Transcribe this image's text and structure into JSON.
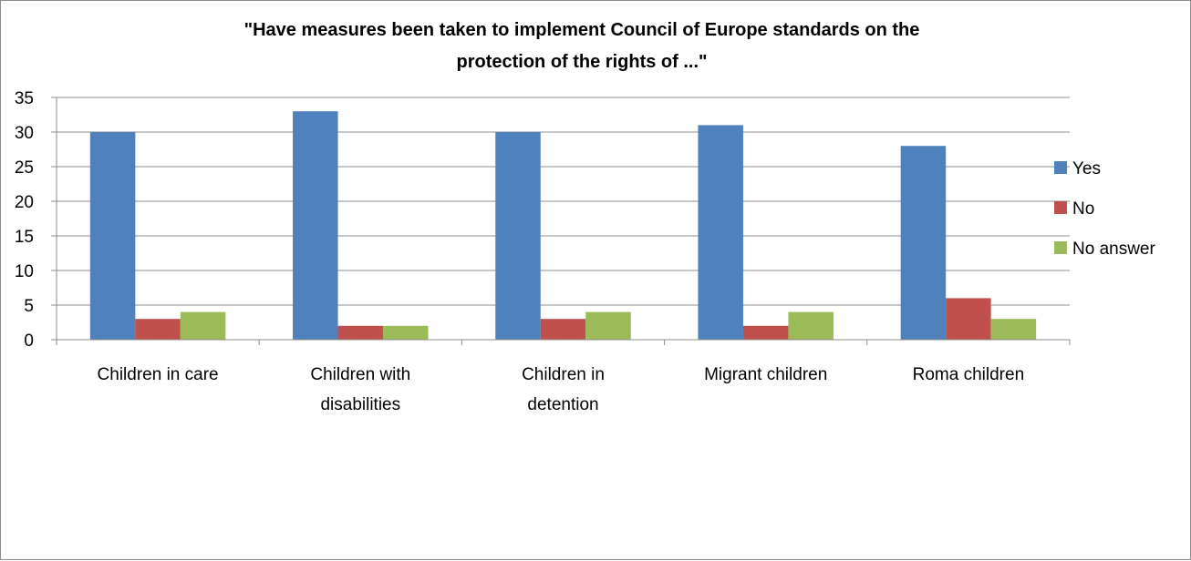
{
  "chart_data": {
    "type": "bar",
    "title_lines": [
      "\"Have measures been taken to implement Council of Europe standards on the",
      "protection of the rights of ...\""
    ],
    "categories": [
      [
        "Children in care"
      ],
      [
        "Children with",
        "disabilities"
      ],
      [
        "Children in",
        "detention"
      ],
      [
        "Migrant children"
      ],
      [
        "Roma children"
      ]
    ],
    "series": [
      {
        "name": "Yes",
        "color": "#4f81bd",
        "values": [
          30,
          33,
          30,
          31,
          28
        ]
      },
      {
        "name": "No",
        "color": "#c0504d",
        "values": [
          3,
          2,
          3,
          2,
          6
        ]
      },
      {
        "name": "No answer",
        "color": "#9bbb59",
        "values": [
          4,
          2,
          4,
          4,
          3
        ]
      }
    ],
    "ylim": [
      0,
      35
    ],
    "yticks": [
      0,
      5,
      10,
      15,
      20,
      25,
      30,
      35
    ],
    "grid": true,
    "legend_position": "right"
  }
}
